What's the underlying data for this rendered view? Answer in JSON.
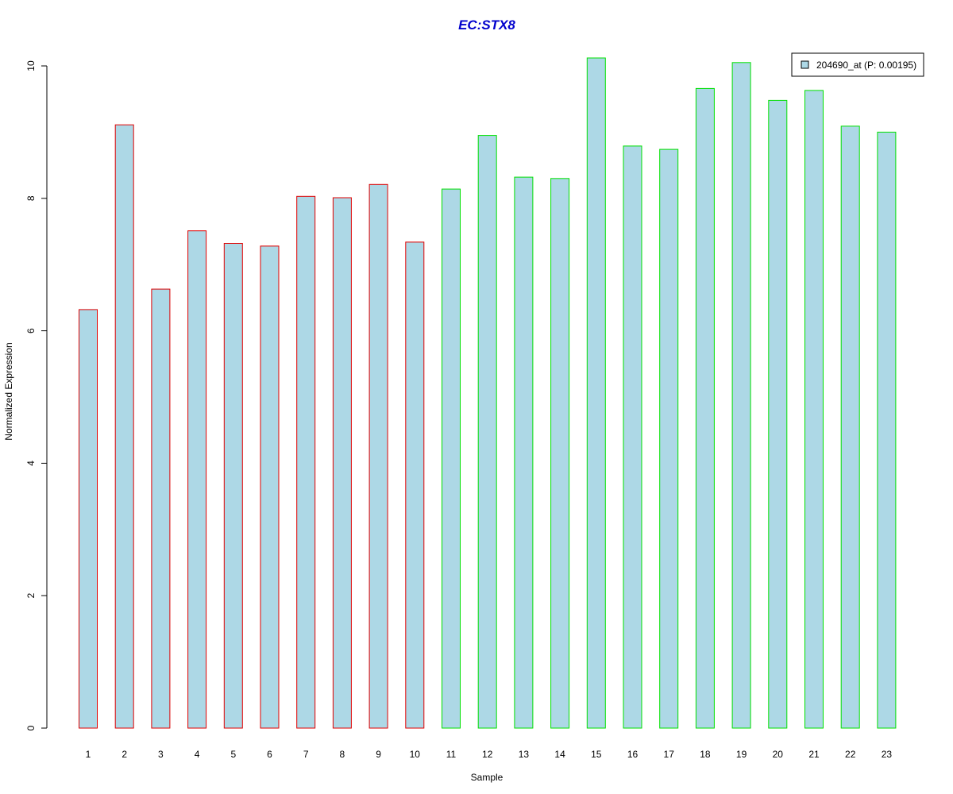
{
  "chart_data": {
    "type": "bar",
    "title": "EC:STX8",
    "xlabel": "Sample",
    "ylabel": "Normalized Expression",
    "categories": [
      "1",
      "2",
      "3",
      "4",
      "5",
      "6",
      "7",
      "8",
      "9",
      "10",
      "11",
      "12",
      "13",
      "14",
      "15",
      "16",
      "17",
      "18",
      "19",
      "20",
      "21",
      "22",
      "23"
    ],
    "series": [
      {
        "name": "204690_at (P: 0.00195)",
        "values": [
          6.32,
          9.11,
          6.63,
          7.51,
          7.32,
          7.28,
          8.03,
          8.01,
          8.21,
          7.34,
          8.14,
          8.95,
          8.32,
          8.3,
          10.12,
          8.79,
          8.74,
          9.66,
          10.05,
          9.48,
          9.63,
          9.09,
          9.0
        ]
      }
    ],
    "groups": [
      {
        "samples": [
          1,
          2,
          3,
          4,
          5,
          6,
          7,
          8,
          9,
          10
        ],
        "border_color": "#e00000"
      },
      {
        "samples": [
          11,
          12,
          13,
          14,
          15,
          16,
          17,
          18,
          19,
          20,
          21,
          22,
          23
        ],
        "border_color": "#00e000"
      }
    ],
    "yticks": [
      "0",
      "2",
      "4",
      "6",
      "8",
      "10"
    ],
    "ylim": [
      0,
      10.3
    ],
    "legend_position": "top-right",
    "grid": false,
    "colors": {
      "bar_fill": "#add8e6",
      "title": "#0000cd",
      "group1_border": "#e00000",
      "group2_border": "#00e000"
    }
  }
}
